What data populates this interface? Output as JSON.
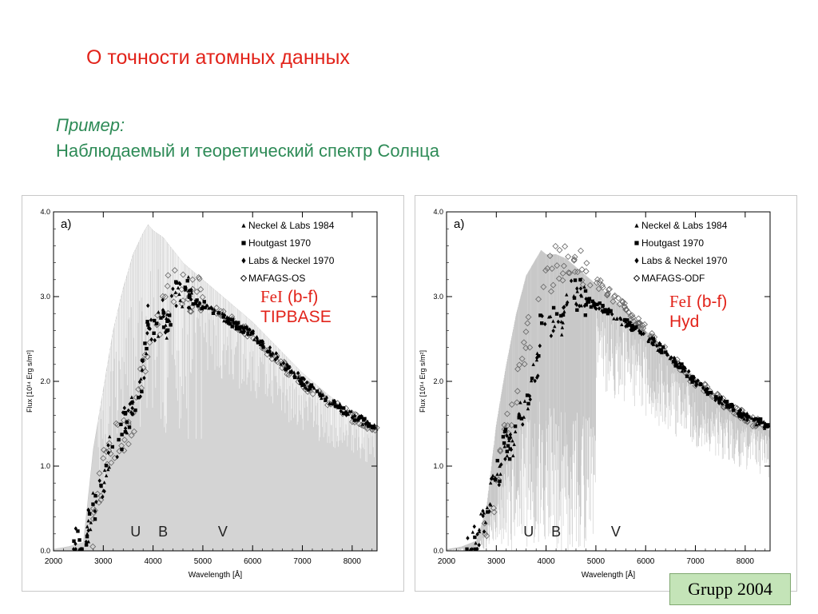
{
  "slide": {
    "title": "О точности атомных данных",
    "subtitle_line1": "Пример:",
    "subtitle_line2": "Наблюдаемый и теоретический спектр Солнца",
    "credit": "Grupp 2004"
  },
  "colors": {
    "title": "#e2231a",
    "subtitle": "#2e8b57",
    "annotation": "#e2231a",
    "model_spectrum": "#c9c9c9",
    "credit_bg": "#c4e4b8"
  },
  "chart_data": [
    {
      "type": "scatter",
      "panel_label": "a)",
      "xlabel": "Wavelength  [Å]",
      "ylabel_prefix": "Flux",
      "ylabel_units": "[10¹⁴ Erg s/m²]",
      "xlim": [
        2000,
        8500
      ],
      "ylim": [
        0.0,
        4.0
      ],
      "x_ticks": [
        2000,
        3000,
        4000,
        5000,
        6000,
        7000,
        8000
      ],
      "y_ticks": [
        "0.0",
        "1.0",
        "2.0",
        "3.0",
        "4.0"
      ],
      "band_labels": [
        {
          "text": "U",
          "x": 3650
        },
        {
          "text": "B",
          "x": 4200
        },
        {
          "text": "V",
          "x": 5400
        }
      ],
      "legend": [
        {
          "marker": "triangle",
          "label": "Neckel & Labs 1984"
        },
        {
          "marker": "square",
          "label": "Houtgast 1970"
        },
        {
          "marker": "diamond-filled",
          "label": "Labs & Neckel 1970"
        },
        {
          "marker": "diamond-open",
          "label": "MAFAGS-OS"
        }
      ],
      "annotation": {
        "element": "FeI",
        "line1_rest": " (b-f)",
        "line2": "TIPBASE"
      },
      "model_spectrum": {
        "style": "dense-fill",
        "x": [
          2000,
          2300,
          2600,
          2800,
          3000,
          3200,
          3400,
          3600,
          3800,
          3900,
          4000,
          4200,
          4400,
          4600,
          4800,
          5000,
          5500,
          6000,
          6500,
          7000,
          7500,
          8000,
          8500
        ],
        "y": [
          0.02,
          0.05,
          0.1,
          1.2,
          1.9,
          2.6,
          3.1,
          3.5,
          3.75,
          3.85,
          3.78,
          3.7,
          3.55,
          3.4,
          3.3,
          3.2,
          2.95,
          2.7,
          2.4,
          2.1,
          1.85,
          1.63,
          1.45
        ]
      },
      "observed": {
        "x": [
          2000,
          2300,
          2600,
          2800,
          3000,
          3100,
          3200,
          3300,
          3400,
          3500,
          3600,
          3700,
          3800,
          3850,
          3900,
          4000,
          4100,
          4200,
          4300,
          4400,
          4500,
          4600,
          4700,
          4800,
          5000,
          5200,
          5500,
          6000,
          6500,
          7000,
          7500,
          8000,
          8500
        ],
        "y": [
          0.01,
          0.03,
          0.1,
          0.5,
          0.8,
          1.1,
          1.3,
          1.25,
          1.45,
          1.6,
          1.8,
          1.9,
          2.15,
          2.3,
          2.75,
          2.55,
          2.7,
          2.85,
          2.6,
          2.95,
          3.05,
          3.0,
          3.05,
          2.95,
          2.9,
          2.85,
          2.72,
          2.55,
          2.28,
          2.0,
          1.78,
          1.6,
          1.46
        ]
      },
      "model_points": {
        "x": [
          2800,
          3000,
          3200,
          3400,
          3600,
          3800,
          4000,
          4200,
          4400,
          4600,
          4800,
          5000,
          5500,
          6000,
          6500,
          7000,
          7500,
          8000,
          8500
        ],
        "y": [
          0.25,
          0.95,
          1.25,
          1.35,
          1.55,
          2.05,
          2.45,
          2.85,
          3.15,
          3.1,
          3.05,
          2.95,
          2.75,
          2.55,
          2.25,
          1.98,
          1.77,
          1.58,
          1.44
        ]
      }
    },
    {
      "type": "scatter",
      "panel_label": "a)",
      "xlabel": "Wavelength  [Å]",
      "ylabel_prefix": "Flux",
      "ylabel_units": "[10¹⁴ Erg s/m²]",
      "xlim": [
        2000,
        8500
      ],
      "ylim": [
        0.0,
        4.0
      ],
      "x_ticks": [
        2000,
        3000,
        4000,
        5000,
        6000,
        7000,
        8000
      ],
      "y_ticks": [
        "0.0",
        "1.0",
        "2.0",
        "3.0",
        "4.0"
      ],
      "band_labels": [
        {
          "text": "U",
          "x": 3650
        },
        {
          "text": "B",
          "x": 4200
        },
        {
          "text": "V",
          "x": 5400
        }
      ],
      "legend": [
        {
          "marker": "triangle",
          "label": "Neckel & Labs 1984"
        },
        {
          "marker": "square",
          "label": "Houtgast 1970"
        },
        {
          "marker": "diamond-filled",
          "label": "Labs & Neckel 1970"
        },
        {
          "marker": "diamond-open",
          "label": "MAFAGS-ODF"
        }
      ],
      "annotation": {
        "element": "FeI",
        "line1_rest": " (b-f)",
        "line2": "Hyd"
      },
      "model_spectrum": {
        "style": "sparse-lines",
        "x": [
          2000,
          2300,
          2600,
          2800,
          3000,
          3200,
          3400,
          3600,
          3800,
          3900,
          4000,
          4200,
          4400,
          4600,
          4800,
          5000,
          5500,
          6000,
          6500,
          7000,
          7500,
          8000,
          8500
        ],
        "y": [
          0.02,
          0.05,
          0.12,
          0.5,
          1.5,
          2.2,
          2.8,
          3.25,
          3.45,
          3.55,
          3.5,
          3.5,
          3.45,
          3.35,
          3.25,
          3.15,
          2.9,
          2.6,
          2.3,
          2.05,
          1.8,
          1.6,
          1.42
        ]
      },
      "observed": {
        "x": [
          2000,
          2300,
          2600,
          2800,
          3000,
          3100,
          3200,
          3300,
          3400,
          3500,
          3600,
          3700,
          3800,
          3850,
          3900,
          4000,
          4100,
          4200,
          4300,
          4400,
          4500,
          4600,
          4700,
          4800,
          5000,
          5200,
          5500,
          6000,
          6500,
          7000,
          7500,
          8000,
          8500
        ],
        "y": [
          0.01,
          0.03,
          0.1,
          0.5,
          0.8,
          1.1,
          1.3,
          1.25,
          1.45,
          1.6,
          1.8,
          1.9,
          2.15,
          2.3,
          2.75,
          2.55,
          2.7,
          2.85,
          2.6,
          2.95,
          3.05,
          3.0,
          3.05,
          2.95,
          2.9,
          2.85,
          2.72,
          2.55,
          2.28,
          2.0,
          1.78,
          1.6,
          1.46
        ]
      },
      "model_points": {
        "x": [
          2800,
          3000,
          3200,
          3400,
          3600,
          3800,
          4000,
          4200,
          4400,
          4600,
          4800,
          5000,
          5500,
          6000,
          6500,
          7000,
          7500,
          8000,
          8500
        ],
        "y": [
          0.3,
          0.75,
          1.4,
          1.95,
          2.5,
          2.9,
          3.2,
          3.4,
          3.45,
          3.42,
          3.3,
          3.18,
          2.92,
          2.6,
          2.28,
          2.0,
          1.78,
          1.58,
          1.42
        ]
      }
    }
  ]
}
